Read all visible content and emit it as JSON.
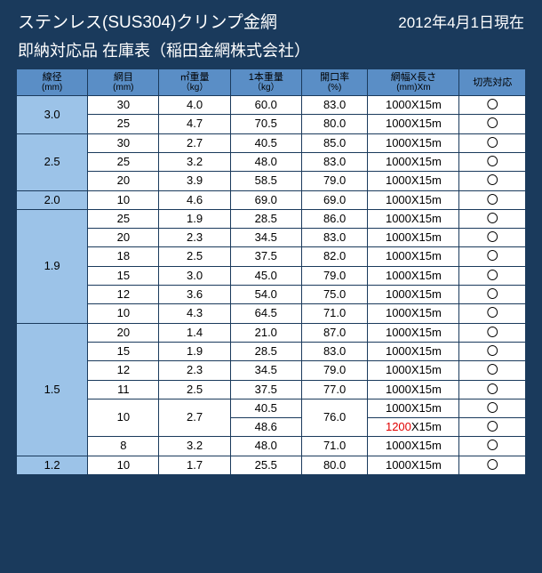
{
  "header": {
    "title": "ステンレス(SUS304)クリンプ金網",
    "date": "2012年4月1日現在",
    "subtitle": "即納対応品 在庫表（稲田金網株式会社）"
  },
  "columns": [
    {
      "label": "線径",
      "sub": "(mm)"
    },
    {
      "label": "網目",
      "sub": "(mm)"
    },
    {
      "label": "㎡重量",
      "sub": "（kg）"
    },
    {
      "label": "1本重量",
      "sub": "（kg）"
    },
    {
      "label": "開口率",
      "sub": "(%)"
    },
    {
      "label": "網幅X長さ",
      "sub": "(mm)Xm"
    },
    {
      "label": "切売対応",
      "sub": ""
    }
  ],
  "circle": "〇",
  "size_std": "1000X15m",
  "size_alt_prefix": "1200",
  "size_alt_suffix": "X15m",
  "groups": [
    {
      "gauge": "3.0",
      "rows": [
        {
          "mesh": "30",
          "m2": "4.0",
          "wt": "60.0",
          "open": "83.0",
          "size": "std"
        },
        {
          "mesh": "25",
          "m2": "4.7",
          "wt": "70.5",
          "open": "80.0",
          "size": "std"
        }
      ]
    },
    {
      "gauge": "2.5",
      "rows": [
        {
          "mesh": "30",
          "m2": "2.7",
          "wt": "40.5",
          "open": "85.0",
          "size": "std"
        },
        {
          "mesh": "25",
          "m2": "3.2",
          "wt": "48.0",
          "open": "83.0",
          "size": "std"
        },
        {
          "mesh": "20",
          "m2": "3.9",
          "wt": "58.5",
          "open": "79.0",
          "size": "std"
        }
      ]
    },
    {
      "gauge": "2.0",
      "rows": [
        {
          "mesh": "10",
          "m2": "4.6",
          "wt": "69.0",
          "open": "69.0",
          "size": "std"
        }
      ]
    },
    {
      "gauge": "1.9",
      "rows": [
        {
          "mesh": "25",
          "m2": "1.9",
          "wt": "28.5",
          "open": "86.0",
          "size": "std"
        },
        {
          "mesh": "20",
          "m2": "2.3",
          "wt": "34.5",
          "open": "83.0",
          "size": "std"
        },
        {
          "mesh": "18",
          "m2": "2.5",
          "wt": "37.5",
          "open": "82.0",
          "size": "std"
        },
        {
          "mesh": "15",
          "m2": "3.0",
          "wt": "45.0",
          "open": "79.0",
          "size": "std"
        },
        {
          "mesh": "12",
          "m2": "3.6",
          "wt": "54.0",
          "open": "75.0",
          "size": "std"
        },
        {
          "mesh": "10",
          "m2": "4.3",
          "wt": "64.5",
          "open": "71.0",
          "size": "std"
        }
      ]
    },
    {
      "gauge": "1.5",
      "rows": [
        {
          "mesh": "20",
          "m2": "1.4",
          "wt": "21.0",
          "open": "87.0",
          "size": "std"
        },
        {
          "mesh": "15",
          "m2": "1.9",
          "wt": "28.5",
          "open": "83.0",
          "size": "std"
        },
        {
          "mesh": "12",
          "m2": "2.3",
          "wt": "34.5",
          "open": "79.0",
          "size": "std"
        },
        {
          "mesh": "11",
          "m2": "2.5",
          "wt": "37.5",
          "open": "77.0",
          "size": "std"
        },
        {
          "mesh": "10",
          "m2": "2.7",
          "wt": "40.5",
          "open": "76.0",
          "size": "std",
          "mesh_rowspan": 2,
          "m2_rowspan": 2,
          "open_rowspan": 2
        },
        {
          "wt": "48.6",
          "size": "alt",
          "partial": true
        },
        {
          "mesh": "8",
          "m2": "3.2",
          "wt": "48.0",
          "open": "71.0",
          "size": "std"
        }
      ]
    },
    {
      "gauge": "1.2",
      "rows": [
        {
          "mesh": "10",
          "m2": "1.7",
          "wt": "25.5",
          "open": "80.0",
          "size": "std"
        }
      ]
    }
  ],
  "colors": {
    "page_bg": "#1a3a5c",
    "header_bg": "#5a8ec6",
    "gauge_bg": "#9cc3e8",
    "cell_bg": "#ffffff",
    "border": "#1a3a5c",
    "text": "#000000",
    "title_text": "#ffffff",
    "highlight": "#e00000"
  },
  "col_widths_pct": [
    14,
    14,
    14,
    14,
    13,
    18,
    13
  ]
}
